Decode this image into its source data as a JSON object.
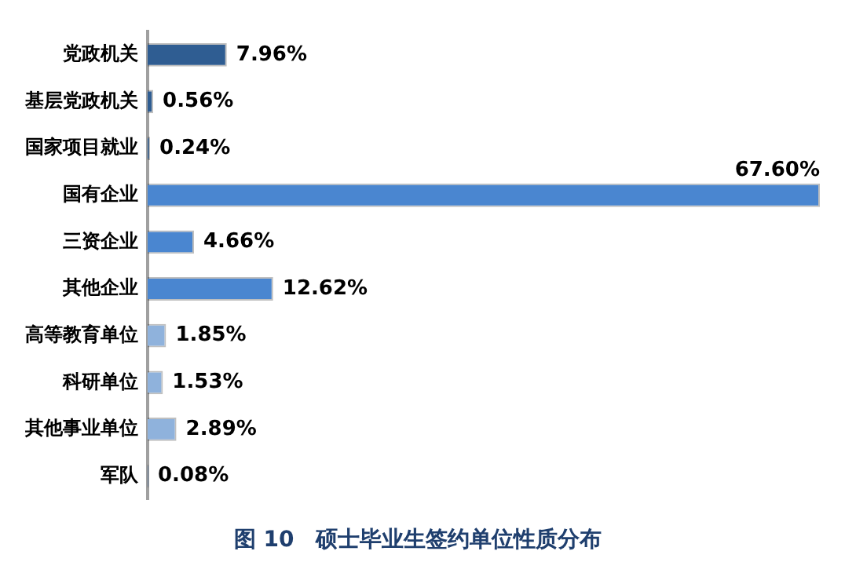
{
  "chart_data": {
    "type": "bar",
    "orientation": "horizontal",
    "title": "图 10　硕士毕业生签约单位性质分布",
    "categories": [
      "党政机关",
      "基层党政机关",
      "国家项目就业",
      "国有企业",
      "三资企业",
      "其他企业",
      "高等教育单位",
      "科研单位",
      "其他事业单位",
      "军队"
    ],
    "values": [
      7.96,
      0.56,
      0.24,
      67.6,
      4.66,
      12.62,
      1.85,
      1.53,
      2.89,
      0.08
    ],
    "colors": [
      "#2f5d92",
      "#2f5d92",
      "#2f5d92",
      "#4a86d0",
      "#4a86d0",
      "#4a86d0",
      "#8fb2dc",
      "#8fb2dc",
      "#8fb2dc",
      "#2f5d92"
    ],
    "value_labels": [
      "7.96%",
      "0.56%",
      "0.24%",
      "67.60%",
      "4.66%",
      "12.62%",
      "1.85%",
      "1.53%",
      "2.89%",
      "0.08%"
    ],
    "data_labels": false
  }
}
